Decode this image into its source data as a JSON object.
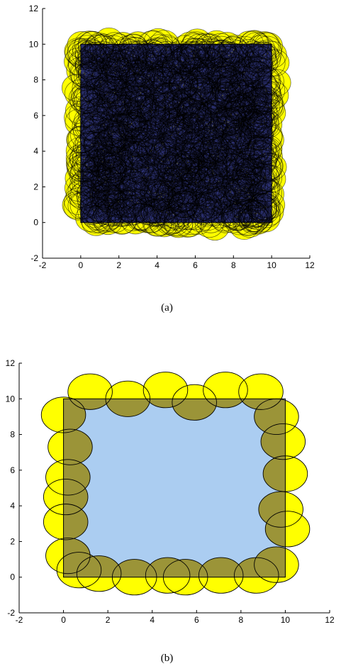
{
  "chart_data": [
    {
      "type": "scatter",
      "panel": "(a)",
      "title": "",
      "xlabel": "",
      "ylabel": "",
      "xlim": [
        -2,
        12
      ],
      "ylim": [
        -2,
        12
      ],
      "xticks": [
        -2,
        0,
        2,
        4,
        6,
        8,
        10,
        12
      ],
      "yticks": [
        -2,
        0,
        2,
        4,
        6,
        8,
        10,
        12
      ],
      "region": {
        "x": [
          0,
          10
        ],
        "y": [
          0,
          10
        ],
        "fill": "#2a2f6e"
      },
      "circle_fill": "#ffff00",
      "circle_count": 1500,
      "circle_radius": 0.75,
      "grid": false
    },
    {
      "type": "scatter",
      "panel": "(b)",
      "title": "",
      "xlabel": "",
      "ylabel": "",
      "xlim": [
        -2,
        12
      ],
      "ylim": [
        -2,
        12
      ],
      "xticks": [
        -2,
        0,
        2,
        4,
        6,
        8,
        10,
        12
      ],
      "yticks": [
        -2,
        0,
        2,
        4,
        6,
        8,
        10,
        12
      ],
      "region": {
        "x": [
          0,
          10
        ],
        "y": [
          0,
          10
        ],
        "fill": "#abcdf1"
      },
      "circle_fill": "#ffff00",
      "overlap_fill": "#9b9438",
      "circle_radius": 1.0,
      "circles": [
        [
          1.2,
          10.4
        ],
        [
          2.9,
          10.0
        ],
        [
          4.6,
          10.5
        ],
        [
          5.9,
          9.8
        ],
        [
          7.3,
          10.5
        ],
        [
          8.9,
          10.4
        ],
        [
          0.0,
          9.1
        ],
        [
          0.3,
          7.3
        ],
        [
          0.2,
          5.6
        ],
        [
          0.1,
          4.5
        ],
        [
          0.1,
          3.1
        ],
        [
          0.2,
          1.2
        ],
        [
          0.7,
          0.4
        ],
        [
          1.6,
          0.2
        ],
        [
          3.2,
          0.0
        ],
        [
          4.7,
          0.1
        ],
        [
          5.5,
          0.0
        ],
        [
          7.1,
          0.1
        ],
        [
          8.7,
          0.1
        ],
        [
          9.6,
          0.7
        ],
        [
          10.1,
          2.7
        ],
        [
          9.8,
          3.8
        ],
        [
          10.0,
          5.8
        ],
        [
          9.9,
          7.6
        ],
        [
          9.6,
          9.0
        ]
      ],
      "grid": false
    }
  ],
  "captions": {
    "a": "(a)",
    "b": "(b)"
  }
}
